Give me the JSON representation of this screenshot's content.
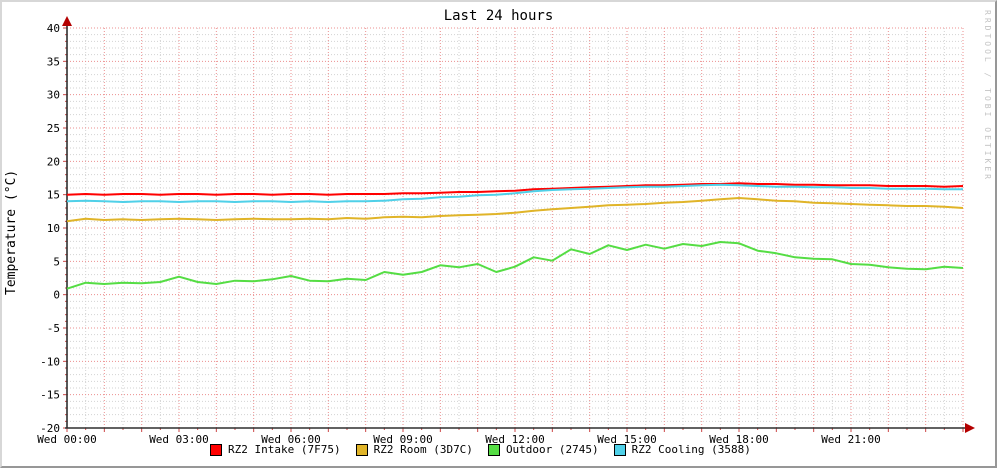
{
  "chart_data": {
    "type": "line",
    "title": "Last 24 hours",
    "ylabel": "Temperature (°C)",
    "watermark": "RRDTOOL / TOBI OETIKER",
    "xlim_hours": [
      0,
      24
    ],
    "ylim": [
      -20,
      40
    ],
    "y_major_step": 5,
    "y_minor_step": 1,
    "x_major_step_hours": 1,
    "x_minor_step_hours": 0.5,
    "grid_on": true,
    "legend_position": "bottom",
    "x_ticks": [
      {
        "hour": 0,
        "label": "Wed 00:00"
      },
      {
        "hour": 3,
        "label": "Wed 03:00"
      },
      {
        "hour": 6,
        "label": "Wed 06:00"
      },
      {
        "hour": 9,
        "label": "Wed 09:00"
      },
      {
        "hour": 12,
        "label": "Wed 12:00"
      },
      {
        "hour": 15,
        "label": "Wed 15:00"
      },
      {
        "hour": 18,
        "label": "Wed 18:00"
      },
      {
        "hour": 21,
        "label": "Wed 21:00"
      }
    ],
    "x_hours": [
      0,
      0.5,
      1,
      1.5,
      2,
      2.5,
      3,
      3.5,
      4,
      4.5,
      5,
      5.5,
      6,
      6.5,
      7,
      7.5,
      8,
      8.5,
      9,
      9.5,
      10,
      10.5,
      11,
      11.5,
      12,
      12.5,
      13,
      13.5,
      14,
      14.5,
      15,
      15.5,
      16,
      16.5,
      17,
      17.5,
      18,
      18.5,
      19,
      19.5,
      20,
      20.5,
      21,
      21.5,
      22,
      22.5,
      23,
      23.5,
      24
    ],
    "series": [
      {
        "name": "RZ2 Intake (7F75)",
        "color": "#ff0000",
        "values": [
          15.0,
          15.1,
          15.0,
          15.1,
          15.1,
          15.0,
          15.1,
          15.1,
          15.0,
          15.1,
          15.1,
          15.0,
          15.1,
          15.1,
          15.0,
          15.1,
          15.1,
          15.1,
          15.2,
          15.2,
          15.3,
          15.4,
          15.4,
          15.5,
          15.6,
          15.8,
          15.9,
          16.0,
          16.1,
          16.2,
          16.3,
          16.4,
          16.4,
          16.5,
          16.6,
          16.6,
          16.7,
          16.6,
          16.6,
          16.5,
          16.5,
          16.4,
          16.4,
          16.4,
          16.3,
          16.3,
          16.3,
          16.2,
          16.3
        ]
      },
      {
        "name": "RZ2 Room (3D7C)",
        "color": "#e0b428",
        "values": [
          11.0,
          11.4,
          11.2,
          11.3,
          11.2,
          11.3,
          11.4,
          11.3,
          11.2,
          11.3,
          11.4,
          11.3,
          11.3,
          11.4,
          11.3,
          11.5,
          11.4,
          11.6,
          11.7,
          11.6,
          11.8,
          11.9,
          12.0,
          12.1,
          12.3,
          12.6,
          12.8,
          13.0,
          13.2,
          13.4,
          13.5,
          13.6,
          13.8,
          13.9,
          14.1,
          14.3,
          14.5,
          14.3,
          14.1,
          14.0,
          13.8,
          13.7,
          13.6,
          13.5,
          13.4,
          13.3,
          13.3,
          13.2,
          13.0
        ]
      },
      {
        "name": "Outdoor (2745)",
        "color": "#55dd44",
        "values": [
          0.9,
          1.8,
          1.6,
          1.8,
          1.7,
          1.9,
          2.7,
          1.9,
          1.6,
          2.1,
          2.0,
          2.3,
          2.8,
          2.1,
          2.0,
          2.4,
          2.2,
          3.4,
          3.0,
          3.4,
          4.4,
          4.1,
          4.6,
          3.4,
          4.2,
          5.6,
          5.1,
          6.8,
          6.1,
          7.4,
          6.7,
          7.5,
          6.9,
          7.6,
          7.3,
          7.9,
          7.7,
          6.6,
          6.2,
          5.6,
          5.4,
          5.3,
          4.6,
          4.5,
          4.1,
          3.9,
          3.8,
          4.2,
          4.0
        ]
      },
      {
        "name": "RZ2 Cooling (3588)",
        "color": "#4fd0e8",
        "values": [
          14.0,
          14.1,
          14.0,
          13.9,
          14.0,
          14.0,
          13.9,
          14.0,
          14.0,
          13.9,
          14.0,
          14.0,
          13.9,
          14.0,
          13.9,
          14.0,
          14.0,
          14.1,
          14.3,
          14.4,
          14.6,
          14.7,
          14.9,
          15.0,
          15.2,
          15.5,
          15.7,
          15.8,
          15.9,
          16.0,
          16.1,
          16.2,
          16.2,
          16.3,
          16.4,
          16.5,
          16.4,
          16.3,
          16.2,
          16.2,
          16.1,
          16.1,
          16.0,
          16.0,
          15.9,
          15.9,
          15.9,
          15.8,
          15.8
        ]
      }
    ],
    "colors": {
      "major_grid": "#ec8f8f",
      "minor_grid": "#d2d2d2",
      "axis": "#2e2e2e",
      "arrow": "#b40000",
      "tick": "#cc4444",
      "tick_label": "#000000"
    }
  }
}
